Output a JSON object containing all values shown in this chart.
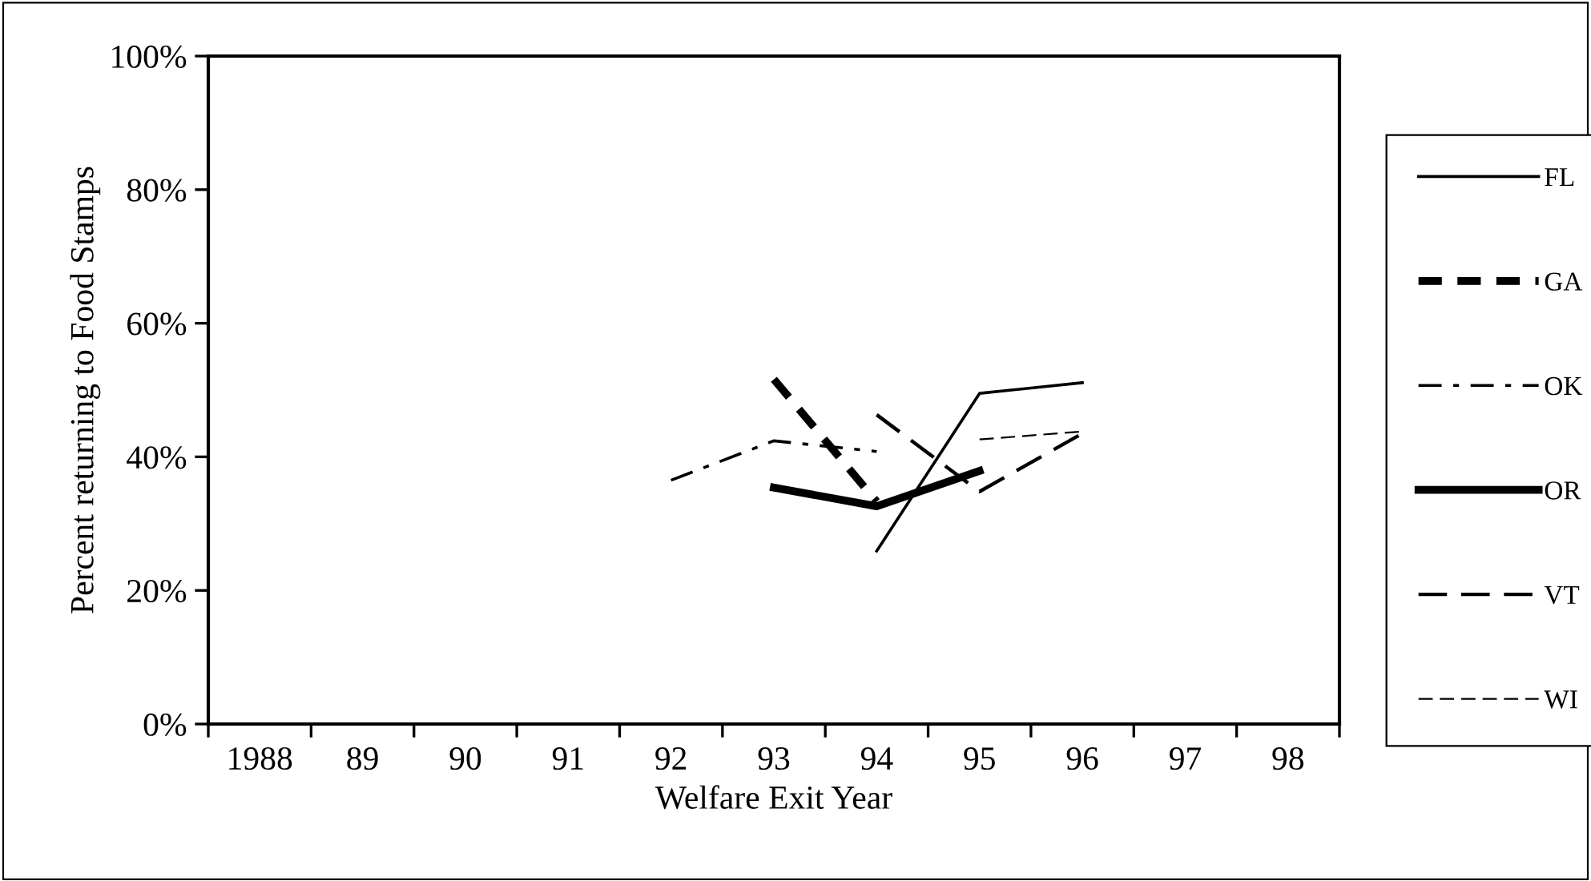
{
  "chart_data": {
    "type": "line",
    "xlabel": "Welfare Exit Year",
    "ylabel": "Percent returning to Food Stamps",
    "categories": [
      "1988",
      "89",
      "90",
      "91",
      "92",
      "93",
      "94",
      "95",
      "96",
      "97",
      "98"
    ],
    "series": [
      {
        "name": "FL",
        "color": "#000000",
        "line_style": "solid",
        "values": [
          null,
          null,
          null,
          null,
          null,
          null,
          25.9,
          49.5,
          51.1,
          null,
          null
        ]
      },
      {
        "name": "GA",
        "color": "#000000",
        "line_style": "dotted",
        "values": [
          null,
          null,
          null,
          null,
          null,
          51.6,
          33.3,
          null,
          null,
          null,
          null
        ]
      },
      {
        "name": "OK",
        "color": "#000000",
        "line_style": "dashdot",
        "values": [
          null,
          null,
          null,
          null,
          36.5,
          42.4,
          40.8,
          null,
          null,
          null,
          null
        ]
      },
      {
        "name": "OR",
        "color": "#000000",
        "line_style": "solid",
        "values": [
          null,
          null,
          null,
          null,
          null,
          35.4,
          32.6,
          37.9,
          null,
          null,
          null
        ]
      },
      {
        "name": "VT",
        "color": "#000000",
        "line_style": "dashed",
        "values": [
          null,
          null,
          null,
          null,
          null,
          null,
          46.3,
          34.8,
          43.5,
          null,
          null
        ]
      },
      {
        "name": "WI",
        "color": "#000000",
        "line_style": "dashed",
        "values": [
          null,
          null,
          null,
          null,
          null,
          null,
          null,
          42.6,
          43.8,
          null,
          null
        ]
      }
    ],
    "ylim": [
      0,
      100
    ],
    "yticks": [
      {
        "value": 0,
        "label": "0%"
      },
      {
        "value": 20,
        "label": "20%"
      },
      {
        "value": 40,
        "label": "40%"
      },
      {
        "value": 60,
        "label": "60%"
      },
      {
        "value": 80,
        "label": "80%"
      },
      {
        "value": 100,
        "label": "100%"
      }
    ],
    "grid": false,
    "legend": "right",
    "marker": "none"
  }
}
